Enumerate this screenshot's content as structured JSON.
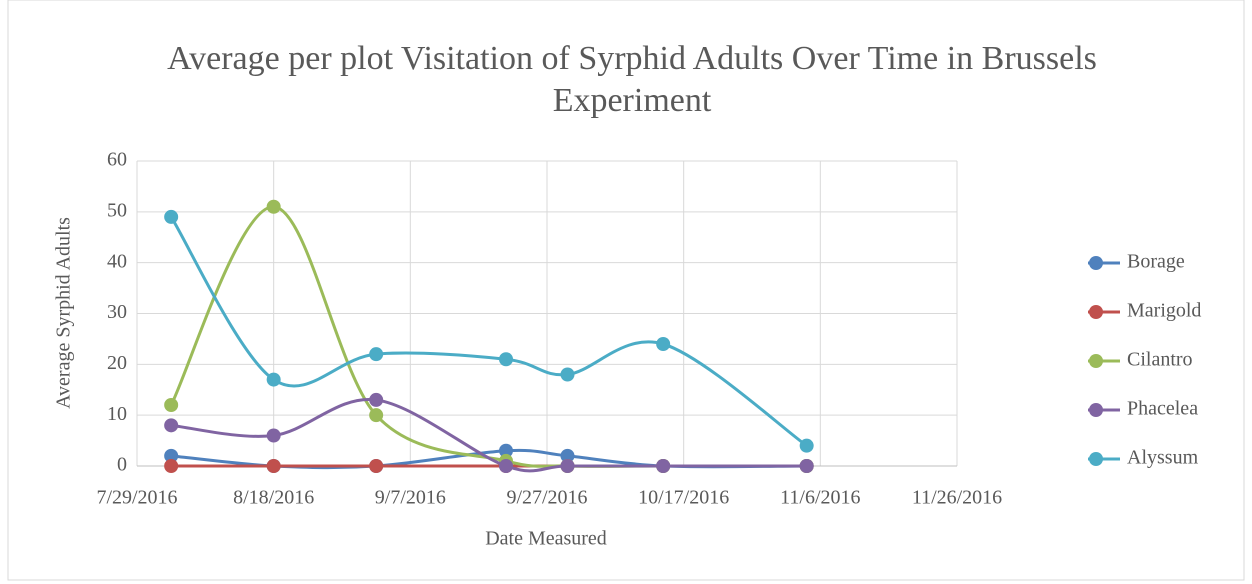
{
  "chart_data": {
    "type": "line",
    "smooth": true,
    "title": "Average per plot Visitation of Syrphid Adults Over Time in Brussels Experiment",
    "x_label": "Date Measured",
    "y_label": "Average Syrphid Adults",
    "x": [
      "8/3/2016",
      "8/18/2016",
      "9/2/2016",
      "9/21/2016",
      "9/30/2016",
      "10/14/2016",
      "11/4/2016"
    ],
    "series": [
      {
        "name": "Borage",
        "color": "#4f81bd",
        "values": [
          2,
          0,
          0,
          3,
          2,
          0,
          0
        ]
      },
      {
        "name": "Marigold",
        "color": "#c0504d",
        "values": [
          0,
          0,
          0,
          0,
          0,
          0,
          0
        ]
      },
      {
        "name": "Cilantro",
        "color": "#9bbb59",
        "values": [
          12,
          51,
          10,
          1,
          0,
          0,
          0
        ]
      },
      {
        "name": "Phacelea",
        "color": "#8064a2",
        "values": [
          8,
          6,
          13,
          0,
          0,
          0,
          0
        ]
      },
      {
        "name": "Alyssum",
        "color": "#4bacc6",
        "values": [
          49,
          17,
          22,
          21,
          18,
          24,
          4
        ]
      }
    ],
    "xlim": [
      "7/29/2016",
      "11/26/2016"
    ],
    "xticks": [
      "7/29/2016",
      "8/18/2016",
      "9/7/2016",
      "9/27/2016",
      "10/17/2016",
      "11/6/2016",
      "11/26/2016"
    ],
    "ylim": [
      0,
      60
    ],
    "yticks": [
      0,
      10,
      20,
      30,
      40,
      50,
      60
    ],
    "grid": true,
    "legend": "right"
  }
}
